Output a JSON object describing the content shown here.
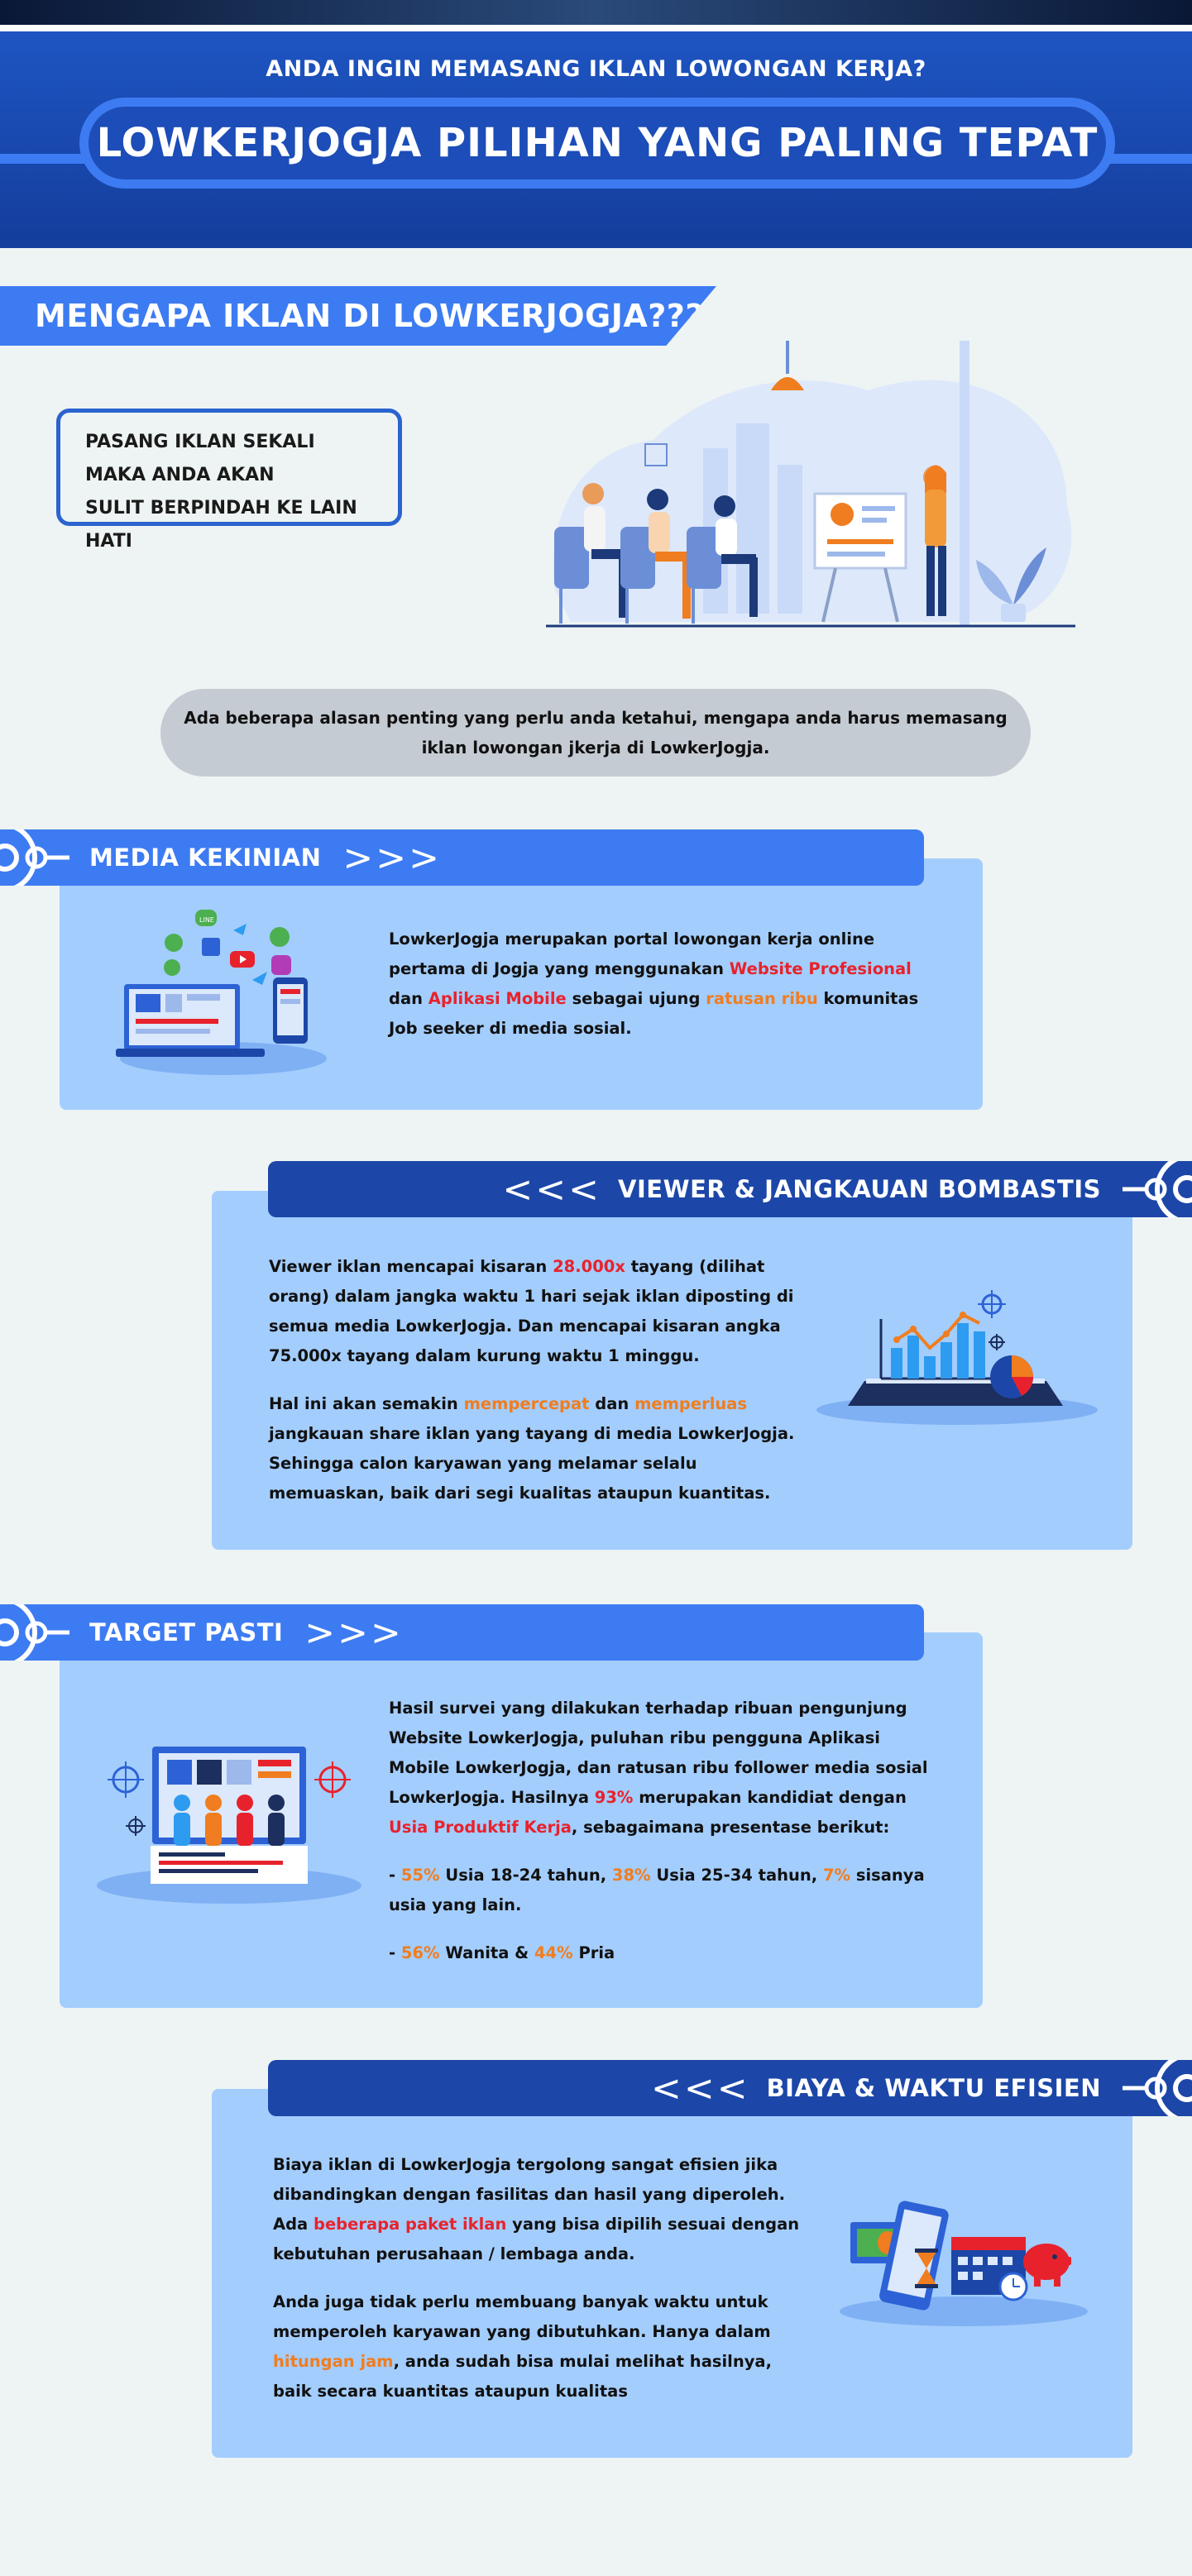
{
  "header": {
    "subtitle": "ANDA INGIN MEMASANG IKLAN LOWONGAN KERJA?",
    "title": "LOWKERJOGJA PILIHAN YANG PALING TEPAT"
  },
  "why": {
    "title": "MENGAPA IKLAN DI LOWKERJOGJA???",
    "box_lines": [
      "PASANG IKLAN SEKALI",
      "MAKA ANDA AKAN",
      "SULIT BERPINDAH KE LAIN HATI"
    ],
    "intro_lines": [
      "Ada beberapa alasan penting yang perlu anda ketahui, mengapa anda harus memasang",
      "iklan lowongan jkerja di LowkerJogja."
    ]
  },
  "media": {
    "title": "MEDIA KEKINIAN",
    "arrows": ">>>",
    "p1": [
      {
        "t": "LowkerJogja merupakan portal lowongan kerja online pertama di Jogja yang menggunakan ",
        "c": ""
      },
      {
        "t": "Website Profesional",
        "c": "red"
      },
      {
        "t": " dan ",
        "c": ""
      },
      {
        "t": "Aplikasi Mobile",
        "c": "red"
      },
      {
        "t": " sebagai ujung ",
        "c": ""
      },
      {
        "t": "ratusan ribu",
        "c": "orange"
      },
      {
        "t": " komunitas Job seeker di media sosial.",
        "c": ""
      }
    ]
  },
  "viewer": {
    "title": "VIEWER & JANGKAUAN BOMBASTIS",
    "arrows": "<<<",
    "p1": [
      {
        "t": "Viewer iklan mencapai kisaran ",
        "c": ""
      },
      {
        "t": "28.000x",
        "c": "red"
      },
      {
        "t": " tayang (dilihat orang) dalam jangka waktu 1 hari sejak iklan diposting di semua media LowkerJogja. Dan mencapai kisaran angka 75.000x tayang dalam kurung waktu 1 minggu.",
        "c": ""
      }
    ],
    "p2": [
      {
        "t": "Hal ini akan semakin ",
        "c": ""
      },
      {
        "t": "mempercepat",
        "c": "orange"
      },
      {
        "t": " dan ",
        "c": ""
      },
      {
        "t": "memperluas",
        "c": "orange"
      },
      {
        "t": " jangkauan share iklan yang tayang di media LowkerJogja. Sehingga calon karyawan yang melamar selalu memuaskan, baik dari segi kualitas ataupun kuantitas.",
        "c": ""
      }
    ]
  },
  "target": {
    "title": "TARGET PASTI",
    "arrows": ">>>",
    "p1": [
      {
        "t": "Hasil survei yang dilakukan terhadap ribuan pengunjung Website LowkerJogja, puluhan ribu pengguna Aplikasi Mobile LowkerJogja, dan ratusan ribu follower media sosial LowkerJogja. Hasilnya ",
        "c": ""
      },
      {
        "t": "93%",
        "c": "red"
      },
      {
        "t": " merupakan kandidiat dengan ",
        "c": ""
      },
      {
        "t": "Usia Produktif Kerja",
        "c": "red"
      },
      {
        "t": ", sebagaimana presentase berikut:",
        "c": ""
      }
    ],
    "p2": [
      {
        "t": "- ",
        "c": ""
      },
      {
        "t": "55%",
        "c": "orange"
      },
      {
        "t": " Usia 18-24 tahun, ",
        "c": ""
      },
      {
        "t": "38%",
        "c": "orange"
      },
      {
        "t": " Usia 25-34 tahun, ",
        "c": ""
      },
      {
        "t": "7%",
        "c": "orange"
      },
      {
        "t": " sisanya usia yang lain.",
        "c": ""
      }
    ],
    "p3": [
      {
        "t": "- ",
        "c": ""
      },
      {
        "t": "56%",
        "c": "orange"
      },
      {
        "t": " Wanita & ",
        "c": ""
      },
      {
        "t": "44%",
        "c": "orange"
      },
      {
        "t": " Pria",
        "c": ""
      }
    ]
  },
  "biaya": {
    "title": "BIAYA & WAKTU EFISIEN",
    "arrows": "<<<",
    "p1": [
      {
        "t": "Biaya iklan di LowkerJogja tergolong sangat efisien jika dibandingkan dengan fasilitas dan hasil yang diperoleh. Ada ",
        "c": ""
      },
      {
        "t": "beberapa paket iklan",
        "c": "red"
      },
      {
        "t": " yang bisa dipilih sesuai dengan kebutuhan perusahaan / lembaga anda.",
        "c": ""
      }
    ],
    "p2": [
      {
        "t": "Anda juga tidak perlu membuang banyak waktu untuk memperoleh karyawan yang dibutuhkan. Hanya dalam ",
        "c": ""
      },
      {
        "t": "hitungan jam",
        "c": "orange"
      },
      {
        "t": ", anda sudah bisa mulai melihat hasilnya, baik secara kuantitas ataupun kualitas",
        "c": ""
      }
    ]
  },
  "social_labels": {
    "line": "LINE"
  },
  "colors": {
    "accent": "#3d7bf2",
    "navy": "#1c47a8",
    "panel": "#a3cdfd",
    "red": "#e8222c",
    "orange": "#f07d1f"
  }
}
